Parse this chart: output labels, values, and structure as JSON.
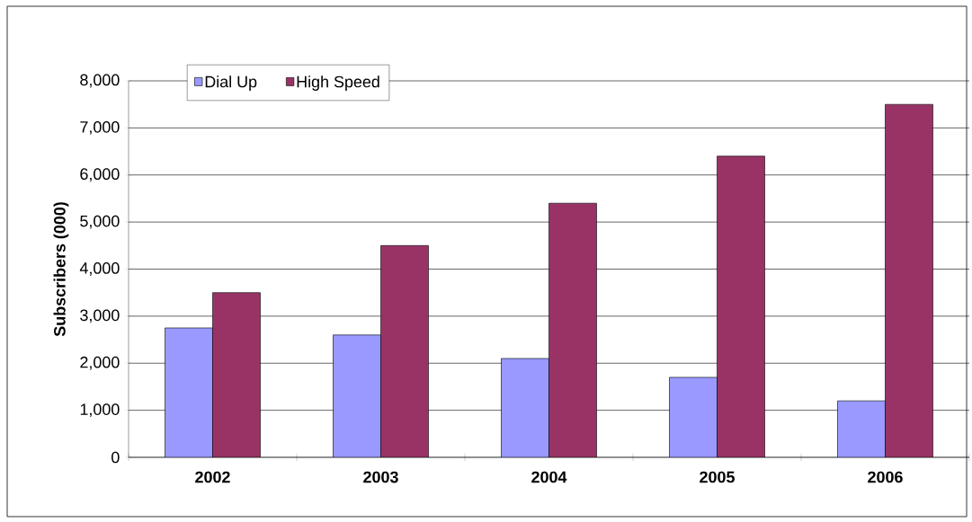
{
  "chart_data": {
    "type": "bar",
    "ylabel": "Subscribers (000)",
    "categories": [
      "2002",
      "2003",
      "2004",
      "2005",
      "2006"
    ],
    "series": [
      {
        "name": "Dial Up",
        "color": "#9999ff",
        "values": [
          2750,
          2600,
          2100,
          1700,
          1200
        ]
      },
      {
        "name": "High Speed",
        "color": "#993366",
        "values": [
          3500,
          4500,
          5400,
          6400,
          7500
        ]
      }
    ],
    "ylim": [
      0,
      8000
    ],
    "yticks": [
      0,
      {
        "value": 1000,
        "label": "1,000"
      },
      {
        "value": 2000,
        "label": "2,000"
      },
      {
        "value": 3000,
        "label": "3,000"
      },
      {
        "value": 4000,
        "label": "4,000"
      },
      {
        "value": 5000,
        "label": "5,000"
      },
      {
        "value": 6000,
        "label": "6,000"
      },
      {
        "value": 7000,
        "label": "7,000"
      },
      {
        "value": 8000,
        "label": "8,000"
      }
    ],
    "grid": "y",
    "legend": "top left"
  }
}
